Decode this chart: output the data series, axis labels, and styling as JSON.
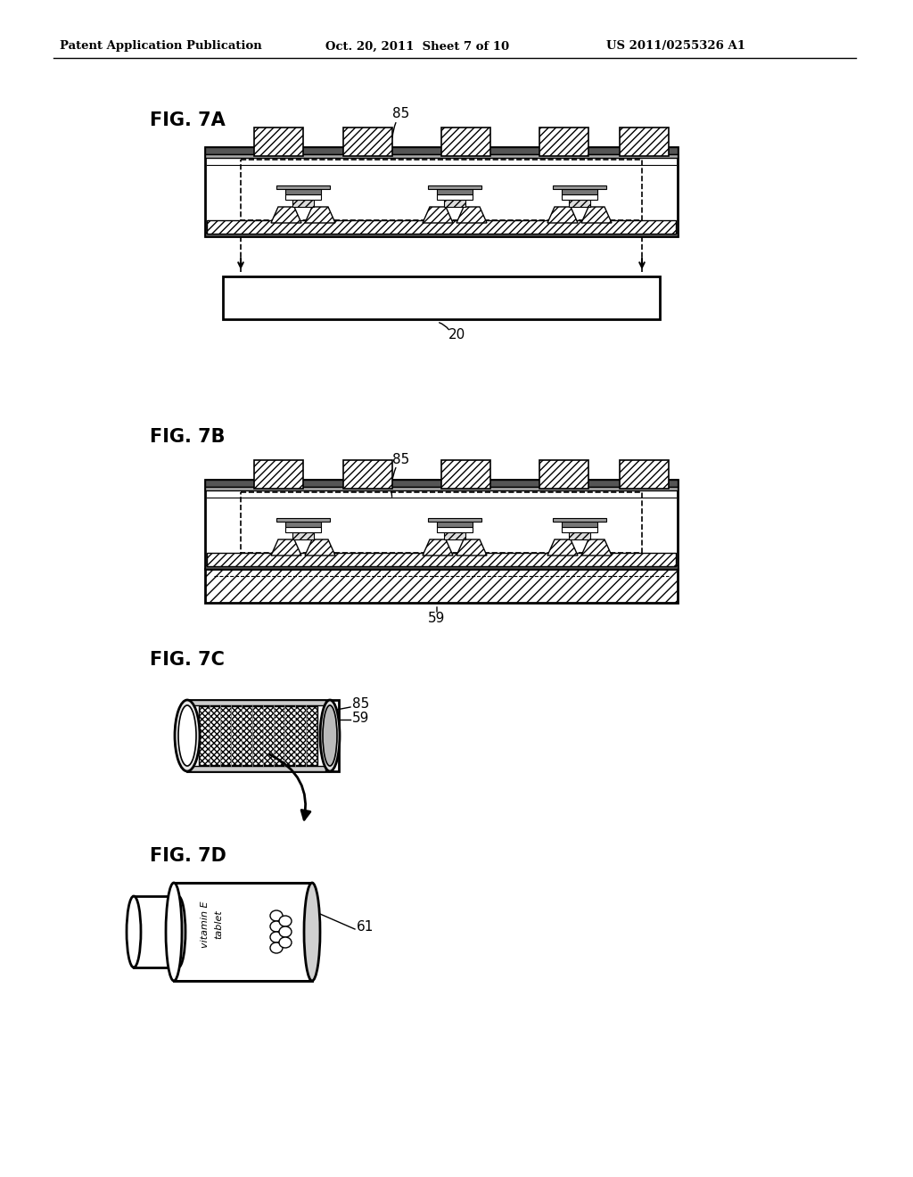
{
  "header_left": "Patent Application Publication",
  "header_mid": "Oct. 20, 2011  Sheet 7 of 10",
  "header_right": "US 2011/0255326 A1",
  "bg_color": "#ffffff"
}
